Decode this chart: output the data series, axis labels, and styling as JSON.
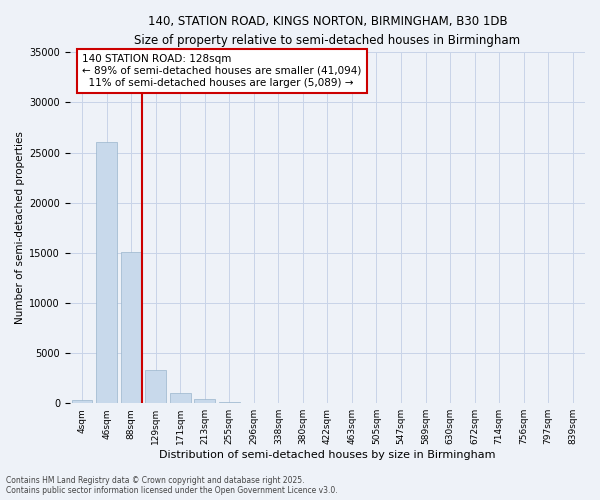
{
  "title_line1": "140, STATION ROAD, KINGS NORTON, BIRMINGHAM, B30 1DB",
  "title_line2": "Size of property relative to semi-detached houses in Birmingham",
  "xlabel": "Distribution of semi-detached houses by size in Birmingham",
  "ylabel": "Number of semi-detached properties",
  "categories": [
    "4sqm",
    "46sqm",
    "88sqm",
    "129sqm",
    "171sqm",
    "213sqm",
    "255sqm",
    "296sqm",
    "338sqm",
    "380sqm",
    "422sqm",
    "463sqm",
    "505sqm",
    "547sqm",
    "589sqm",
    "630sqm",
    "672sqm",
    "714sqm",
    "756sqm",
    "797sqm",
    "839sqm"
  ],
  "values": [
    350,
    26100,
    15100,
    3300,
    1050,
    400,
    150,
    30,
    0,
    0,
    0,
    0,
    0,
    0,
    0,
    0,
    0,
    0,
    0,
    0,
    0
  ],
  "bar_color": "#c8d9eb",
  "bar_edge_color": "#9ab5cc",
  "grid_color": "#c8d4e8",
  "background_color": "#eef2f8",
  "subject_size": "128sqm",
  "pct_smaller": 89,
  "n_smaller": 41094,
  "pct_larger": 11,
  "n_larger": 5089,
  "annotation_box_color": "#ffffff",
  "annotation_border_color": "#cc0000",
  "vline_color": "#cc0000",
  "ylim": [
    0,
    35000
  ],
  "yticks": [
    0,
    5000,
    10000,
    15000,
    20000,
    25000,
    30000,
    35000
  ],
  "footnote1": "Contains HM Land Registry data © Crown copyright and database right 2025.",
  "footnote2": "Contains public sector information licensed under the Open Government Licence v3.0."
}
